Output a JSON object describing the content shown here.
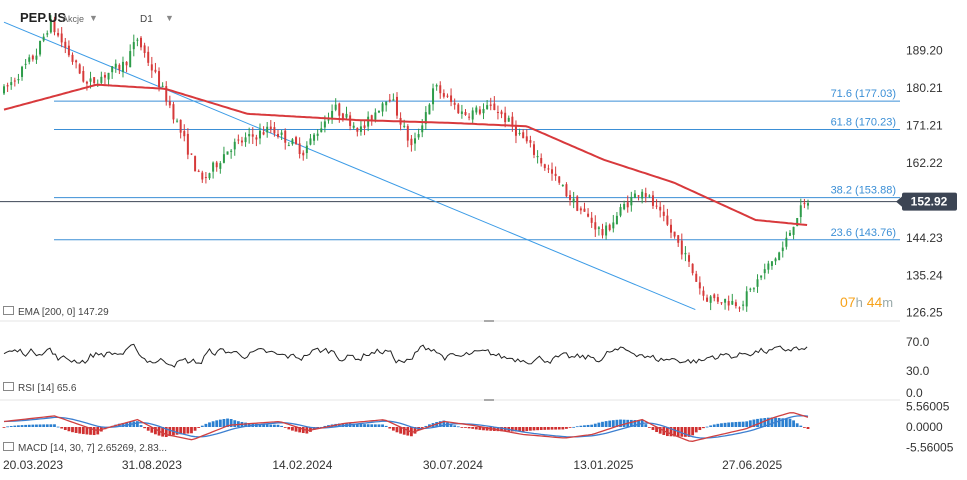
{
  "header": {
    "symbol": "PEP.US",
    "instrument_type": "Akcje",
    "timeframe": "D1"
  },
  "countdown": {
    "hours": "07",
    "h": "h",
    "minutes": "44",
    "m": "m"
  },
  "indicators": {
    "ema_label": "EMA [200, 0]",
    "ema_value": "147.29",
    "rsi_label": "RSI [14]",
    "rsi_value": "65.6",
    "macd_label": "MACD [14, 30, 7]",
    "macd_values": "2.65269, 2.83..."
  },
  "colors": {
    "candle_up": "#2e9c4a",
    "candle_down": "#d63a3a",
    "ema": "#d8393c",
    "fib_lines": "#3b8fd6",
    "trend_line": "#3b9be6",
    "price_badge": "#3c4554",
    "countdown": "#f7a31c",
    "macd_fast": "#d04040",
    "macd_slow": "#3c7fd0",
    "hist_pos": "#2a7fd0",
    "hist_neg": "#d03030"
  },
  "chart_data": [
    {
      "type": "candlestick",
      "name": "PEP.US D1",
      "x_tick_labels": [
        "20.03.2023",
        "31.08.2023",
        "14.02.2024",
        "30.07.2024",
        "13.01.2025",
        "27.06.2025"
      ],
      "y_tick_labels": [
        "189.20",
        "180.21",
        "171.21",
        "162.22",
        "153.88",
        "144.23",
        "135.24",
        "126.25"
      ],
      "ylim": [
        124.5,
        197.0
      ],
      "last_price": 152.92,
      "last_price_label": "152.92",
      "fibonacci_levels": [
        {
          "label": "71.6 (177.03)",
          "value": 177.03
        },
        {
          "label": "61.8 (170.23)",
          "value": 170.23
        },
        {
          "label": "38.2 (153.88)",
          "value": 153.88
        },
        {
          "label": "23.6 (143.76)",
          "value": 143.76
        }
      ],
      "trend_line": [
        {
          "date": "2023-03-20",
          "value": 196.0
        },
        {
          "date": "2025-04-25",
          "value": 127.0
        }
      ],
      "price_path": [
        [
          "2023-03-20",
          179.5
        ],
        [
          "2023-04-25",
          188.5
        ],
        [
          "2023-05-10",
          196.0
        ],
        [
          "2023-06-20",
          181.0
        ],
        [
          "2023-08-01",
          186.0
        ],
        [
          "2023-08-15",
          192.0
        ],
        [
          "2023-09-20",
          176.0
        ],
        [
          "2023-10-25",
          157.5
        ],
        [
          "2023-11-25",
          166.0
        ],
        [
          "2024-01-10",
          170.5
        ],
        [
          "2024-02-15",
          165.0
        ],
        [
          "2024-03-20",
          175.5
        ],
        [
          "2024-04-20",
          170.0
        ],
        [
          "2024-05-20",
          179.0
        ],
        [
          "2024-06-15",
          165.5
        ],
        [
          "2024-07-10",
          180.5
        ],
        [
          "2024-08-10",
          174.0
        ],
        [
          "2024-09-15",
          175.5
        ],
        [
          "2024-10-20",
          167.0
        ],
        [
          "2024-12-10",
          153.0
        ],
        [
          "2025-01-13",
          145.0
        ],
        [
          "2025-02-05",
          152.0
        ],
        [
          "2025-02-25",
          156.0
        ],
        [
          "2025-03-25",
          147.0
        ],
        [
          "2025-04-10",
          141.5
        ],
        [
          "2025-05-05",
          130.0
        ],
        [
          "2025-06-15",
          128.5
        ],
        [
          "2025-07-10",
          136.0
        ],
        [
          "2025-08-01",
          142.0
        ],
        [
          "2025-08-15",
          149.5
        ],
        [
          "2025-08-28",
          152.92
        ]
      ],
      "ema200_path": [
        [
          "2023-03-20",
          175.0
        ],
        [
          "2023-07-01",
          181.0
        ],
        [
          "2023-09-15",
          180.0
        ],
        [
          "2023-12-15",
          174.0
        ],
        [
          "2024-04-15",
          172.5
        ],
        [
          "2024-07-30",
          171.8
        ],
        [
          "2024-10-20",
          171.0
        ],
        [
          "2025-01-13",
          163.0
        ],
        [
          "2025-04-01",
          157.5
        ],
        [
          "2025-07-01",
          148.5
        ],
        [
          "2025-08-28",
          147.29
        ]
      ]
    },
    {
      "type": "line",
      "name": "RSI [14]",
      "y_tick_labels": [
        "70.0",
        "30.0",
        "0.0"
      ],
      "ylim": [
        0,
        100
      ],
      "last_value": 65.6
    },
    {
      "type": "bar",
      "name": "MACD [14, 30, 7]",
      "y_tick_labels": [
        "5.56005",
        "0.0000",
        "-5.56005"
      ],
      "ylim": [
        -5.56005,
        5.56005
      ],
      "macd_line_path": [
        [
          "2023-03-20",
          1.5
        ],
        [
          "2023-05-15",
          3.0
        ],
        [
          "2023-07-01",
          -1.0
        ],
        [
          "2023-08-15",
          2.0
        ],
        [
          "2023-09-15",
          -2.0
        ],
        [
          "2023-10-15",
          -3.5
        ],
        [
          "2023-11-25",
          0.5
        ],
        [
          "2024-01-20",
          1.5
        ],
        [
          "2024-02-20",
          -1.0
        ],
        [
          "2024-04-01",
          1.0
        ],
        [
          "2024-05-15",
          2.0
        ],
        [
          "2024-06-15",
          -1.5
        ],
        [
          "2024-07-20",
          1.5
        ],
        [
          "2024-08-20",
          0.5
        ],
        [
          "2024-10-15",
          -2.0
        ],
        [
          "2024-12-01",
          -3.0
        ],
        [
          "2025-01-01",
          -2.0
        ],
        [
          "2025-02-01",
          0.5
        ],
        [
          "2025-02-25",
          2.0
        ],
        [
          "2025-03-25",
          -1.5
        ],
        [
          "2025-04-20",
          -4.0
        ],
        [
          "2025-05-15",
          -2.5
        ],
        [
          "2025-06-20",
          -0.5
        ],
        [
          "2025-07-20",
          2.5
        ],
        [
          "2025-08-10",
          4.0
        ],
        [
          "2025-08-28",
          2.65
        ]
      ]
    }
  ]
}
